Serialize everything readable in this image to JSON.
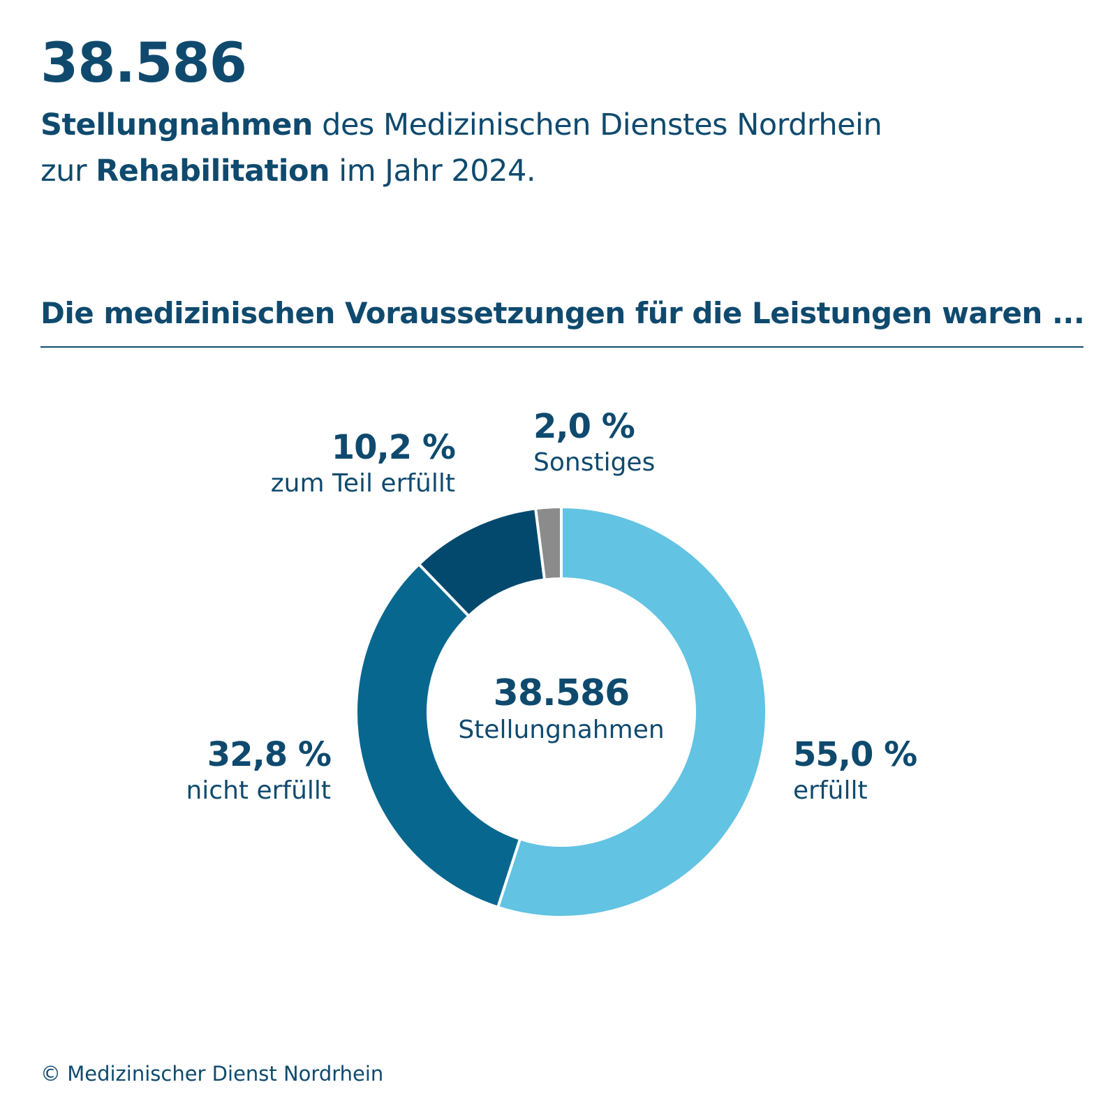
{
  "header": {
    "total": "38.586",
    "intro_line1_bold": "Stellungnahmen",
    "intro_line1_rest": " des Medizinischen Dienstes Nordrhein",
    "intro_line2_start": "zur ",
    "intro_line2_bold": "Rehabilitation",
    "intro_line2_end": " im Jahr 2024."
  },
  "section_title": "Die medizinischen Voraussetzungen für die Leistungen waren ...",
  "chart_data": {
    "type": "pie",
    "variant": "donut",
    "center_value": "38.586",
    "center_label": "Stellungnahmen",
    "slices": [
      {
        "label": "erfüllt",
        "value": 55.0,
        "value_text": "55,0 %",
        "color": "#62c3e3"
      },
      {
        "label": "nicht erfüllt",
        "value": 32.8,
        "value_text": "32,8 %",
        "color": "#08678f"
      },
      {
        "label": "zum Teil erfüllt",
        "value": 10.2,
        "value_text": "10,2 %",
        "color": "#03496e"
      },
      {
        "label": "Sonstiges",
        "value": 2.0,
        "value_text": "2,0 %",
        "color": "#8b8b8b"
      }
    ]
  },
  "footer": {
    "copyright": "© Medizinischer Dienst Nordrhein"
  }
}
